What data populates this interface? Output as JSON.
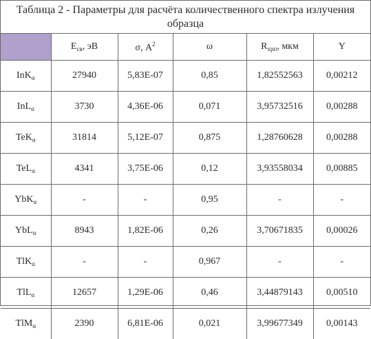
{
  "caption": "Таблица 2 - Параметры для расчёта количественного спектра излучения образца",
  "colors": {
    "corner_cell": "#b0a0cc",
    "border": "#6a6a6a"
  },
  "headers": [
    {
      "main": "",
      "sub": "",
      "tail": "",
      "sup": ""
    },
    {
      "main": "E",
      "sub": "св",
      "tail": ", эВ",
      "sup": ""
    },
    {
      "main": "σ, A",
      "sub": "",
      "tail": "",
      "sup": "2"
    },
    {
      "main": "ω",
      "sub": "",
      "tail": "",
      "sup": ""
    },
    {
      "main": "R",
      "sub": "хрп",
      "tail": ", мкм",
      "sup": ""
    },
    {
      "main": "Y",
      "sub": "",
      "tail": "",
      "sup": ""
    }
  ],
  "rows": [
    {
      "el": "InK",
      "line": "α",
      "vals": [
        "27940",
        "5,83E-07",
        "0,85",
        "1,82552563",
        "0,00212"
      ]
    },
    {
      "el": "InL",
      "line": "α",
      "vals": [
        "3730",
        "4,36E-06",
        "0,071",
        "3,95732516",
        "0,00288"
      ]
    },
    {
      "el": "TeK",
      "line": "α",
      "vals": [
        "31814",
        "5,12E-07",
        "0,875",
        "1,28760628",
        "0,00288"
      ]
    },
    {
      "el": "TeL",
      "line": "α",
      "vals": [
        "4341",
        "3,75E-06",
        "0,12",
        "3,93558034",
        "0,00885"
      ]
    },
    {
      "el": "YbK",
      "line": "α",
      "vals": [
        "-",
        "-",
        "0,95",
        "-",
        "-"
      ]
    },
    {
      "el": "YbL",
      "line": "α",
      "vals": [
        "8943",
        "1,82E-06",
        "0,26",
        "3,70671835",
        "0,00026"
      ]
    },
    {
      "el": "TlK",
      "line": "α",
      "vals": [
        "-",
        "-",
        "0,967",
        "-",
        "-"
      ]
    },
    {
      "el": "TlL",
      "line": "α",
      "vals": [
        "12657",
        "1,29E-06",
        "0,46",
        "3,44879143",
        "0,00510"
      ]
    },
    {
      "el": "TlM",
      "line": "α",
      "vals": [
        "2390",
        "6,81E-06",
        "0,021",
        "3,99677349",
        "0,00143"
      ]
    }
  ]
}
